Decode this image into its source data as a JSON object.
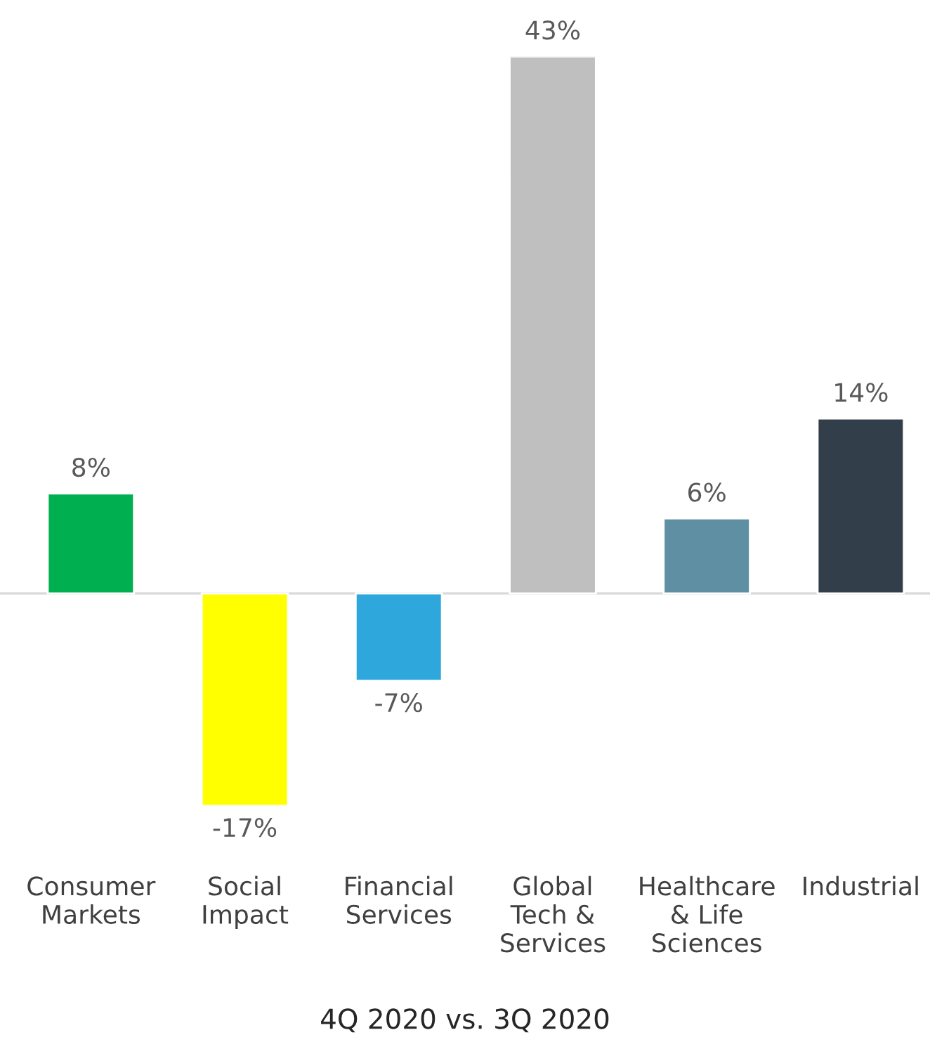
{
  "chart_data": {
    "type": "bar",
    "categories": [
      "Consumer\nMarkets",
      "Social\nImpact",
      "Financial\nServices",
      "Global\nTech &\nServices",
      "Healthcare\n& Life\nSciences",
      "Industrial"
    ],
    "values": [
      8,
      -17,
      -7,
      43,
      6,
      14
    ],
    "colors": [
      "#00b050",
      "#ffff00",
      "#2ea8dc",
      "#bfbfbf",
      "#5f8fa3",
      "#323f4b"
    ],
    "value_labels": [
      "8%",
      "-17%",
      "-7%",
      "43%",
      "6%",
      "14%"
    ],
    "xlabel": "4Q 2020 vs. 3Q 2020",
    "grid": false,
    "legend": false
  }
}
